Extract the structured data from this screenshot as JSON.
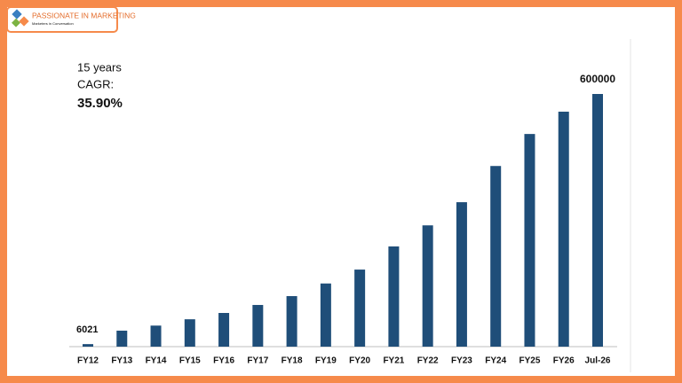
{
  "logo": {
    "title": "PASSIONATE IN MARKETING",
    "subtitle": "Marketers in Conversation"
  },
  "chart_data": {
    "type": "bar",
    "annotation": {
      "line1": "15 years",
      "line2": "CAGR:",
      "value": "35.90%"
    },
    "categories": [
      "FY12",
      "FY13",
      "FY14",
      "FY15",
      "FY16",
      "FY17",
      "FY18",
      "FY19",
      "FY20",
      "FY21",
      "FY22",
      "FY23",
      "FY24",
      "FY25",
      "FY26",
      "Jul-26"
    ],
    "values": [
      6021,
      38000,
      50000,
      65000,
      80000,
      99000,
      120000,
      150000,
      183000,
      238000,
      288000,
      343000,
      429000,
      505000,
      558000,
      600000
    ],
    "labeled": [
      0,
      15
    ],
    "color": "#1f4e79"
  }
}
